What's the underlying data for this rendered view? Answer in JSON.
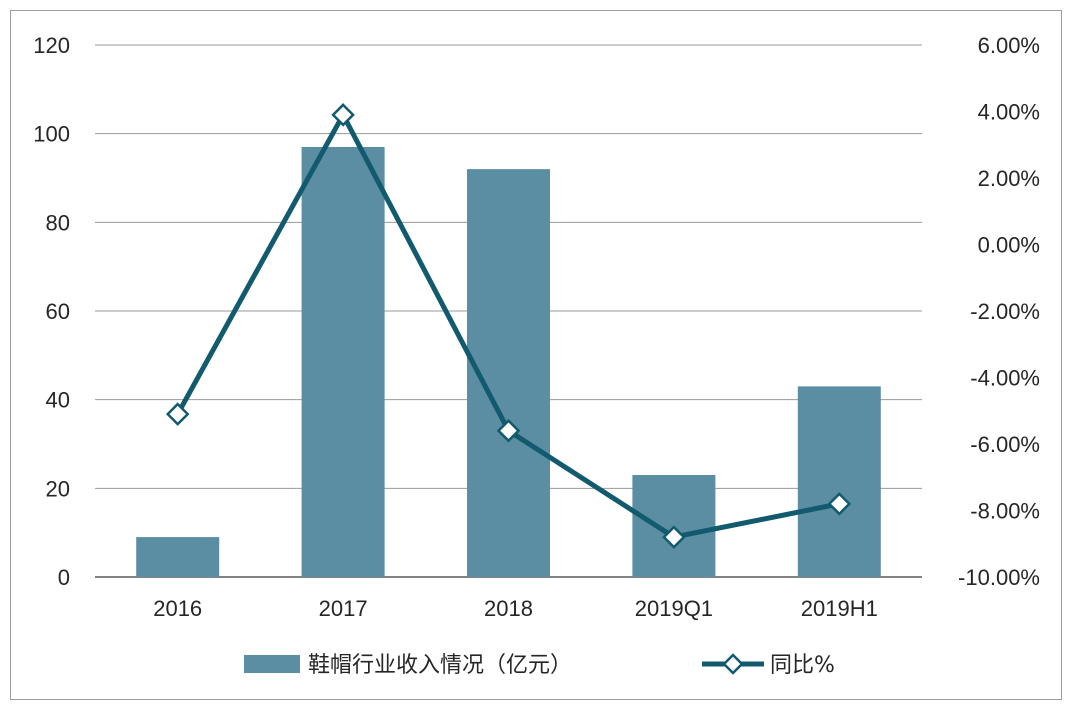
{
  "chart_data": {
    "type": "bar",
    "categories": [
      "2016",
      "2017",
      "2018",
      "2019Q1",
      "2019H1"
    ],
    "series": [
      {
        "name": "鞋帽行业收入情况（亿元）",
        "type": "bar",
        "axis": "left",
        "values": [
          9,
          97,
          92,
          23,
          43
        ],
        "color": "#5b8ea3"
      },
      {
        "name": "同比%",
        "type": "line",
        "axis": "right",
        "values": [
          -5.1,
          3.9,
          -5.6,
          -8.8,
          -7.8
        ],
        "color": "#125a6e",
        "marker": "diamond"
      }
    ],
    "ylim_left": [
      0,
      120
    ],
    "yticks_left": [
      "0",
      "20",
      "40",
      "60",
      "80",
      "100",
      "120"
    ],
    "ylim_right": [
      -10,
      6
    ],
    "yticks_right": [
      "-10.00%",
      "-8.00%",
      "-6.00%",
      "-4.00%",
      "-2.00%",
      "0.00%",
      "2.00%",
      "4.00%",
      "6.00%"
    ],
    "grid": true,
    "legend_position": "bottom-center",
    "title": "",
    "xlabel": "",
    "ylabel": ""
  }
}
